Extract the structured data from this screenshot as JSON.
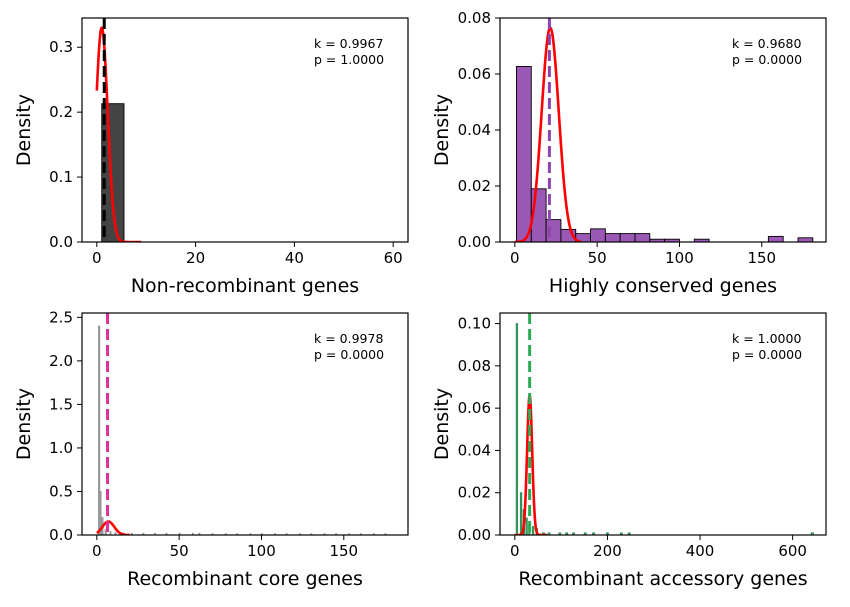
{
  "figure": {
    "ylabel": "Density"
  },
  "chart_data": [
    {
      "type": "histogram",
      "xlabel": "Non-recombinant genes",
      "ylabel": "Density",
      "xlim": [
        -3,
        63
      ],
      "ylim": [
        0,
        0.345
      ],
      "xticks": [
        0,
        20,
        40,
        60
      ],
      "yticks": [
        0.0,
        0.1,
        0.2,
        0.3
      ],
      "ytick_decimals": 1,
      "color": "#444444",
      "edge_color": "#000000",
      "bins": [
        {
          "x0": 1.0,
          "x1": 5.5,
          "height": 0.213
        }
      ],
      "mean_line": {
        "x": 1.5,
        "color": "#000000"
      },
      "curve": {
        "mu": 1.0,
        "sigma": 1.2,
        "amplitude": 0.33,
        "x_start": 0,
        "x_end": 9,
        "color": "#ff0000"
      },
      "annotations": [
        "k = 0.9967",
        "p = 1.0000"
      ]
    },
    {
      "type": "histogram",
      "xlabel": "Highly conserved genes",
      "ylabel": "Density",
      "xlim": [
        -9,
        189
      ],
      "ylim": [
        0,
        0.08
      ],
      "xticks": [
        0,
        50,
        100,
        150
      ],
      "yticks": [
        0.0,
        0.02,
        0.04,
        0.06,
        0.08
      ],
      "ytick_decimals": 2,
      "color": "#9b59b6",
      "edge_color": "#000000",
      "bins": [
        {
          "x0": 1,
          "x1": 10,
          "height": 0.0627
        },
        {
          "x0": 10,
          "x1": 19,
          "height": 0.019
        },
        {
          "x0": 19,
          "x1": 28,
          "height": 0.008
        },
        {
          "x0": 28,
          "x1": 37,
          "height": 0.0045
        },
        {
          "x0": 37,
          "x1": 46,
          "height": 0.003
        },
        {
          "x0": 46,
          "x1": 55,
          "height": 0.0047
        },
        {
          "x0": 55,
          "x1": 64,
          "height": 0.003
        },
        {
          "x0": 64,
          "x1": 73,
          "height": 0.003
        },
        {
          "x0": 73,
          "x1": 82,
          "height": 0.003
        },
        {
          "x0": 82,
          "x1": 91,
          "height": 0.001
        },
        {
          "x0": 91,
          "x1": 100,
          "height": 0.001
        },
        {
          "x0": 109,
          "x1": 118,
          "height": 0.001
        },
        {
          "x0": 154,
          "x1": 163,
          "height": 0.002
        },
        {
          "x0": 172,
          "x1": 181,
          "height": 0.0015
        }
      ],
      "mean_line": {
        "x": 21,
        "color": "#8e44ad"
      },
      "curve": {
        "mu": 21.5,
        "sigma": 5.2,
        "amplitude": 0.0765,
        "x_start": 0,
        "x_end": 40,
        "color": "#ff0000"
      },
      "annotations": [
        "k = 0.9680",
        "p = 0.0000"
      ]
    },
    {
      "type": "histogram",
      "xlabel": "Recombinant core genes",
      "ylabel": "Density",
      "xlim": [
        -9,
        189
      ],
      "ylim": [
        0,
        2.55
      ],
      "xticks": [
        0,
        50,
        100,
        150
      ],
      "yticks": [
        0.0,
        0.5,
        1.0,
        1.5,
        2.0,
        2.5
      ],
      "ytick_decimals": 1,
      "color": "#999999",
      "edge_color": "#999999",
      "bins": [
        {
          "x0": 1.0,
          "x1": 1.8,
          "height": 2.4
        },
        {
          "x0": 1.8,
          "x1": 2.6,
          "height": 0.5
        },
        {
          "x0": 3.0,
          "x1": 3.8,
          "height": 0.2
        },
        {
          "x0": 5.0,
          "x1": 5.8,
          "height": 0.06
        },
        {
          "x0": 8.0,
          "x1": 8.6,
          "height": 0.04
        },
        {
          "x0": 11,
          "x1": 11.6,
          "height": 0.03
        },
        {
          "x0": 16,
          "x1": 16.6,
          "height": 0.02
        },
        {
          "x0": 21,
          "x1": 21.6,
          "height": 0.02
        },
        {
          "x0": 28,
          "x1": 28.6,
          "height": 0.02
        },
        {
          "x0": 35,
          "x1": 35.6,
          "height": 0.02
        },
        {
          "x0": 42,
          "x1": 42.6,
          "height": 0.02
        },
        {
          "x0": 50,
          "x1": 50.6,
          "height": 0.02
        },
        {
          "x0": 58,
          "x1": 58.6,
          "height": 0.02
        },
        {
          "x0": 62,
          "x1": 62.6,
          "height": 0.02
        },
        {
          "x0": 70,
          "x1": 70.6,
          "height": 0.015
        },
        {
          "x0": 78,
          "x1": 78.6,
          "height": 0.015
        },
        {
          "x0": 85,
          "x1": 85.6,
          "height": 0.015
        },
        {
          "x0": 93,
          "x1": 93.6,
          "height": 0.015
        },
        {
          "x0": 100,
          "x1": 100.6,
          "height": 0.015
        },
        {
          "x0": 108,
          "x1": 108.6,
          "height": 0.015
        },
        {
          "x0": 115,
          "x1": 115.6,
          "height": 0.015
        },
        {
          "x0": 123,
          "x1": 123.6,
          "height": 0.015
        },
        {
          "x0": 130,
          "x1": 130.6,
          "height": 0.015
        },
        {
          "x0": 138,
          "x1": 138.6,
          "height": 0.015
        },
        {
          "x0": 145,
          "x1": 145.6,
          "height": 0.015
        },
        {
          "x0": 153,
          "x1": 153.6,
          "height": 0.015
        },
        {
          "x0": 160,
          "x1": 160.6,
          "height": 0.015
        },
        {
          "x0": 168,
          "x1": 168.6,
          "height": 0.015
        },
        {
          "x0": 175,
          "x1": 175.6,
          "height": 0.015
        }
      ],
      "mean_line": {
        "x": 6.5,
        "color": "#e0309a"
      },
      "curve": {
        "mu": 7.0,
        "sigma": 3.6,
        "amplitude": 0.155,
        "x_start": 0,
        "x_end": 20,
        "color": "#ff0000"
      },
      "annotations": [
        "k = 0.9978",
        "p = 0.0000"
      ]
    },
    {
      "type": "histogram",
      "xlabel": "Recombinant accessory genes",
      "ylabel": "Density",
      "xlim": [
        -32,
        672
      ],
      "ylim": [
        0,
        0.105
      ],
      "xticks": [
        0,
        200,
        400,
        600
      ],
      "yticks": [
        0.0,
        0.02,
        0.04,
        0.06,
        0.08,
        0.1
      ],
      "ytick_decimals": 2,
      "color": "#4caf6a",
      "edge_color": "#2e8b57",
      "bins": [
        {
          "x0": 3,
          "x1": 6,
          "height": 0.1
        },
        {
          "x0": 12,
          "x1": 15,
          "height": 0.02
        },
        {
          "x0": 18,
          "x1": 21,
          "height": 0.012
        },
        {
          "x0": 24,
          "x1": 27,
          "height": 0.008
        },
        {
          "x0": 30,
          "x1": 33,
          "height": 0.005
        },
        {
          "x0": 38,
          "x1": 41,
          "height": 0.004
        },
        {
          "x0": 46,
          "x1": 49,
          "height": 0.003
        },
        {
          "x0": 60,
          "x1": 64,
          "height": 0.001
        },
        {
          "x0": 72,
          "x1": 76,
          "height": 0.001
        },
        {
          "x0": 95,
          "x1": 99,
          "height": 0.001
        },
        {
          "x0": 110,
          "x1": 114,
          "height": 0.001
        },
        {
          "x0": 125,
          "x1": 129,
          "height": 0.001
        },
        {
          "x0": 150,
          "x1": 154,
          "height": 0.001
        },
        {
          "x0": 168,
          "x1": 172,
          "height": 0.001
        },
        {
          "x0": 198,
          "x1": 202,
          "height": 0.001
        },
        {
          "x0": 228,
          "x1": 232,
          "height": 0.001
        },
        {
          "x0": 245,
          "x1": 249,
          "height": 0.001
        },
        {
          "x0": 640,
          "x1": 645,
          "height": 0.001
        }
      ],
      "mean_line": {
        "x": 32,
        "color": "#2eaa55"
      },
      "curve": {
        "mu": 32,
        "sigma": 5.5,
        "amplitude": 0.066,
        "x_start": 0,
        "x_end": 70,
        "color": "#ff0000"
      },
      "annotations": [
        "k = 1.0000",
        "p = 0.0000"
      ]
    }
  ]
}
